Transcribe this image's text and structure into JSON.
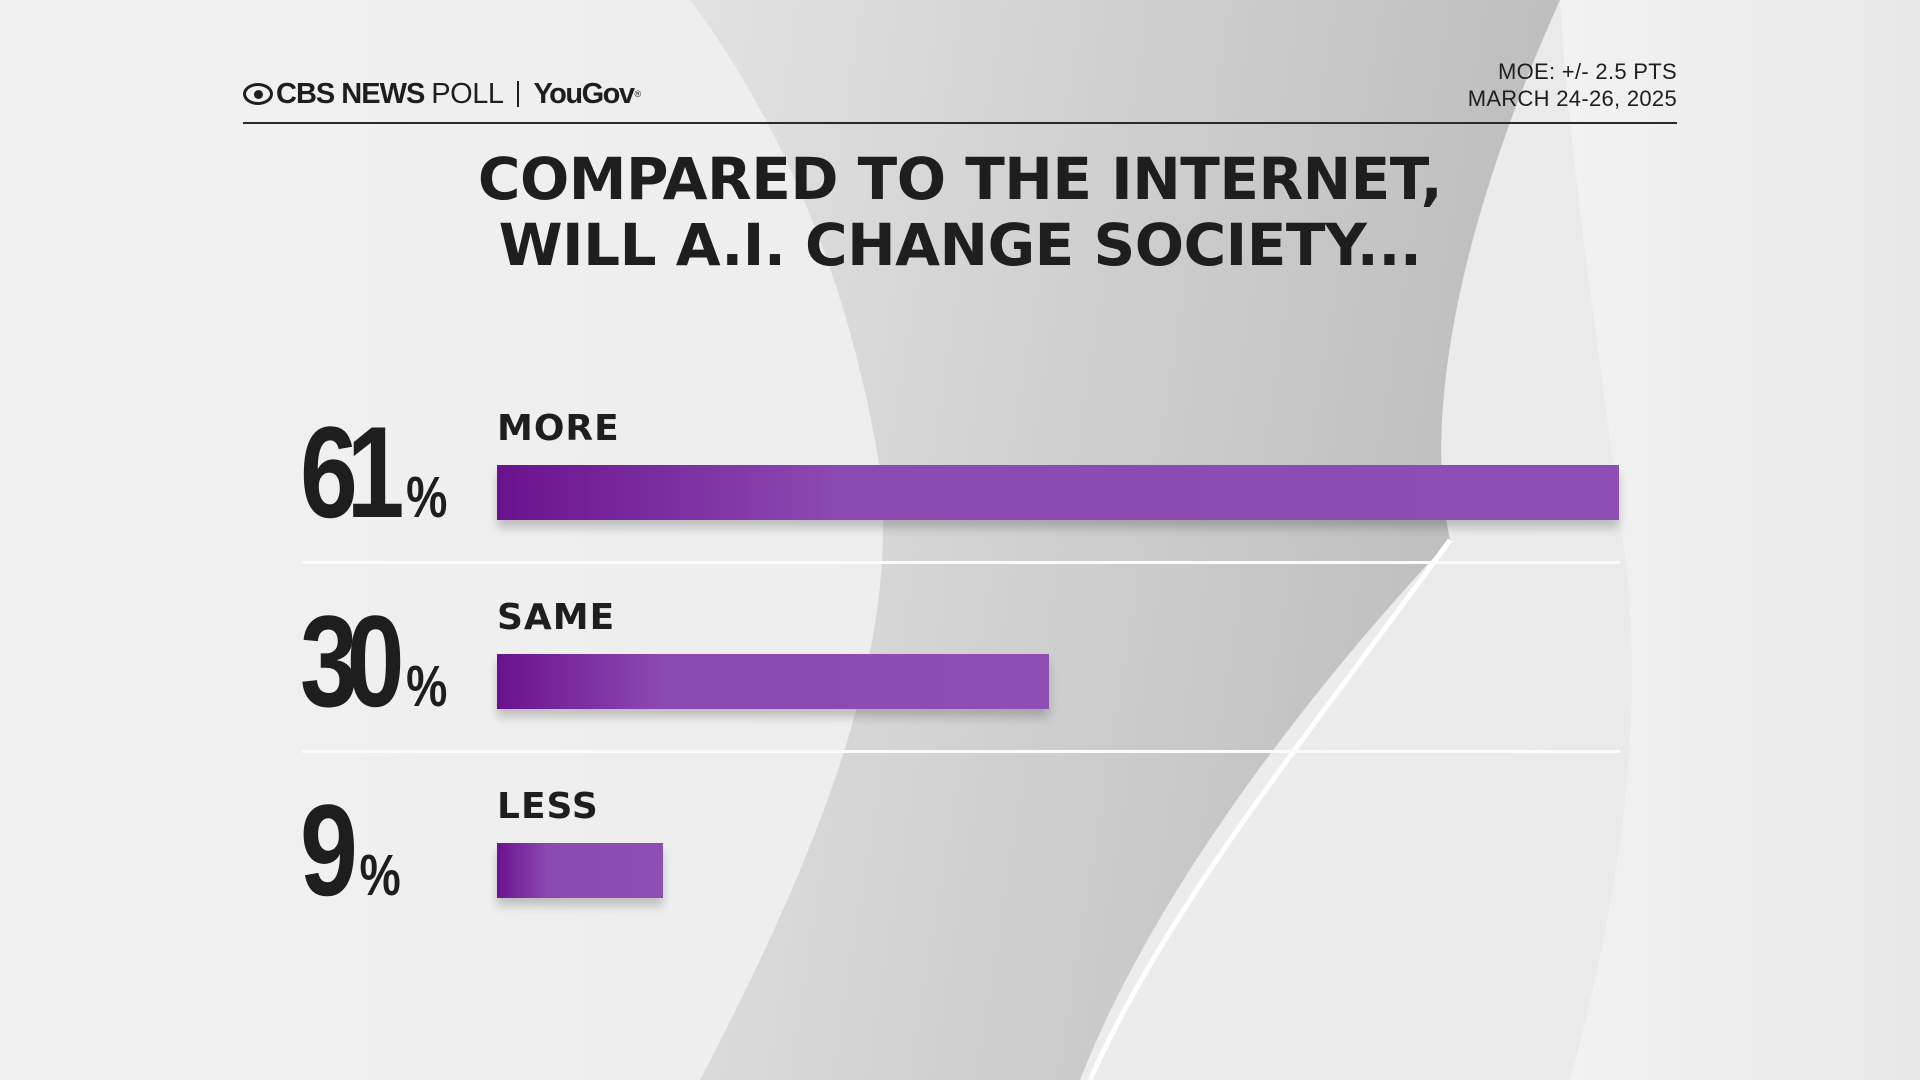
{
  "header": {
    "brand_left": "CBS NEWS",
    "brand_poll": "POLL",
    "brand_partner": "YouGov",
    "partner_mark": "®",
    "moe": "MOE: +/- 2.5 PTS",
    "dates": "MARCH 24-26, 2025"
  },
  "colors": {
    "bar_dark": "#6a128e",
    "bar_light": "#8e4eb3",
    "text": "#1e1e1e",
    "background": "#ececec"
  },
  "chart_data": {
    "type": "bar",
    "orientation": "horizontal",
    "title_line1": "COMPARED TO THE INTERNET,",
    "title_line2": "WILL A.I. CHANGE SOCIETY...",
    "categories": [
      "MORE",
      "SAME",
      "LESS"
    ],
    "values": [
      61,
      30,
      9
    ],
    "value_labels": [
      "61",
      "30",
      "9"
    ],
    "unit": "%",
    "xlim": [
      0,
      61
    ],
    "grid": false,
    "legend": "none"
  }
}
